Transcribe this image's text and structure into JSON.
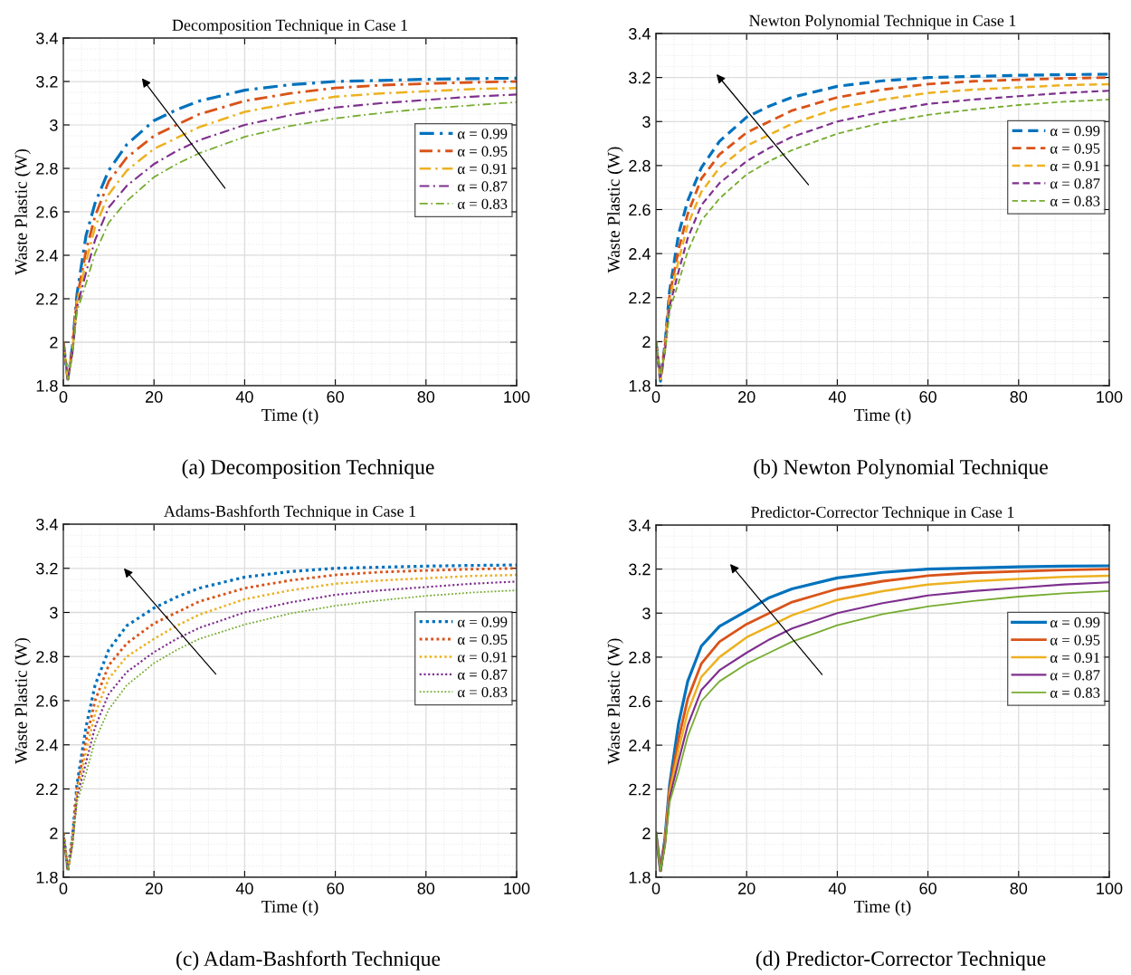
{
  "chart_data": [
    {
      "type": "line",
      "title": "Decomposition Technique in Case 1",
      "xlabel": "Time (t)",
      "ylabel": "Waste Plastic (W)",
      "annotations": [
        "(a) Decomposition Technique"
      ],
      "x": [
        0,
        1,
        2,
        3,
        5,
        7,
        10,
        14,
        20,
        25,
        30,
        40,
        50,
        60,
        70,
        80,
        90,
        100
      ],
      "xlim": [
        0,
        100
      ],
      "xticks": [
        0,
        20,
        40,
        60,
        80,
        100
      ],
      "ylim": [
        1.8,
        3.4
      ],
      "yticks": [
        1.8,
        2,
        2.2,
        2.4,
        2.6,
        2.8,
        3,
        3.2,
        3.4
      ],
      "grid": true,
      "legend": "right",
      "line_style": "dashdot",
      "series": [
        {
          "name": "α = 0.99",
          "color": "#0072bd",
          "values": [
            2.0,
            1.83,
            1.98,
            2.22,
            2.49,
            2.64,
            2.79,
            2.91,
            3.02,
            3.07,
            3.11,
            3.16,
            3.185,
            3.2,
            3.205,
            3.21,
            3.213,
            3.215
          ]
        },
        {
          "name": "α = 0.95",
          "color": "#d95319",
          "values": [
            2.0,
            1.83,
            1.97,
            2.2,
            2.42,
            2.58,
            2.74,
            2.85,
            2.95,
            3.0,
            3.05,
            3.11,
            3.145,
            3.17,
            3.183,
            3.19,
            3.196,
            3.2
          ]
        },
        {
          "name": "α = 0.91",
          "color": "#edb120",
          "values": [
            2.0,
            1.83,
            1.96,
            2.18,
            2.37,
            2.53,
            2.68,
            2.79,
            2.89,
            2.94,
            2.99,
            3.06,
            3.1,
            3.13,
            3.145,
            3.155,
            3.165,
            3.17
          ]
        },
        {
          "name": "α = 0.87",
          "color": "#7e2f8e",
          "values": [
            2.0,
            1.83,
            1.95,
            2.16,
            2.32,
            2.47,
            2.62,
            2.72,
            2.82,
            2.88,
            2.93,
            3.0,
            3.045,
            3.08,
            3.1,
            3.115,
            3.13,
            3.14
          ]
        },
        {
          "name": "α = 0.83",
          "color": "#77ac30",
          "values": [
            2.0,
            1.83,
            1.94,
            2.14,
            2.27,
            2.41,
            2.55,
            2.65,
            2.76,
            2.82,
            2.87,
            2.945,
            2.995,
            3.03,
            3.055,
            3.075,
            3.09,
            3.105
          ]
        }
      ]
    },
    {
      "type": "line",
      "title": "Newton Polynomial Technique in Case 1",
      "xlabel": "Time (t)",
      "ylabel": "Waste Plastic (W)",
      "annotations": [
        "(b) Newton Polynomial Technique"
      ],
      "x": [
        0,
        1,
        2,
        3,
        5,
        7,
        10,
        14,
        20,
        25,
        30,
        40,
        50,
        60,
        70,
        80,
        90,
        100
      ],
      "xlim": [
        0,
        100
      ],
      "xticks": [
        0,
        20,
        40,
        60,
        80,
        100
      ],
      "ylim": [
        1.8,
        3.4
      ],
      "yticks": [
        1.8,
        2,
        2.2,
        2.4,
        2.6,
        2.8,
        3,
        3.2,
        3.4
      ],
      "grid": true,
      "legend": "right",
      "line_style": "dashed",
      "series": [
        {
          "name": "α = 0.99",
          "color": "#0072bd",
          "values": [
            2.0,
            1.82,
            1.99,
            2.23,
            2.49,
            2.64,
            2.79,
            2.91,
            3.02,
            3.07,
            3.11,
            3.16,
            3.185,
            3.2,
            3.205,
            3.21,
            3.213,
            3.215
          ]
        },
        {
          "name": "α = 0.95",
          "color": "#d95319",
          "values": [
            2.0,
            1.83,
            1.98,
            2.21,
            2.42,
            2.58,
            2.74,
            2.85,
            2.95,
            3.0,
            3.05,
            3.11,
            3.145,
            3.17,
            3.183,
            3.19,
            3.196,
            3.2
          ]
        },
        {
          "name": "α = 0.91",
          "color": "#edb120",
          "values": [
            2.0,
            1.83,
            1.97,
            2.19,
            2.37,
            2.53,
            2.68,
            2.79,
            2.89,
            2.94,
            2.99,
            3.06,
            3.1,
            3.13,
            3.145,
            3.155,
            3.165,
            3.17
          ]
        },
        {
          "name": "α = 0.87",
          "color": "#7e2f8e",
          "values": [
            2.0,
            1.84,
            1.96,
            2.16,
            2.32,
            2.47,
            2.62,
            2.72,
            2.82,
            2.88,
            2.93,
            3.0,
            3.045,
            3.08,
            3.1,
            3.115,
            3.13,
            3.14
          ]
        },
        {
          "name": "α = 0.83",
          "color": "#77ac30",
          "values": [
            2.0,
            1.85,
            1.95,
            2.14,
            2.27,
            2.41,
            2.55,
            2.65,
            2.76,
            2.82,
            2.87,
            2.945,
            2.995,
            3.03,
            3.055,
            3.075,
            3.09,
            3.1
          ]
        }
      ]
    },
    {
      "type": "line",
      "title": "Adams-Bashforth Technique in Case 1",
      "xlabel": "Time (t)",
      "ylabel": "Waste Plastic (W)",
      "annotations": [
        "(c) Adam-Bashforth Technique"
      ],
      "x": [
        0,
        1,
        2,
        3,
        5,
        7,
        10,
        14,
        20,
        25,
        30,
        40,
        50,
        60,
        70,
        80,
        90,
        100
      ],
      "xlim": [
        0,
        100
      ],
      "xticks": [
        0,
        20,
        40,
        60,
        80,
        100
      ],
      "ylim": [
        1.8,
        3.4
      ],
      "yticks": [
        1.8,
        2,
        2.2,
        2.4,
        2.6,
        2.8,
        3,
        3.2,
        3.4
      ],
      "grid": true,
      "legend": "right",
      "line_style": "dotted",
      "series": [
        {
          "name": "α = 0.99",
          "color": "#0072bd",
          "values": [
            2.0,
            1.83,
            1.98,
            2.22,
            2.48,
            2.67,
            2.83,
            2.94,
            3.02,
            3.07,
            3.11,
            3.16,
            3.185,
            3.2,
            3.205,
            3.21,
            3.213,
            3.215
          ]
        },
        {
          "name": "α = 0.95",
          "color": "#d95319",
          "values": [
            2.0,
            1.83,
            1.97,
            2.2,
            2.42,
            2.6,
            2.76,
            2.86,
            2.95,
            3.0,
            3.05,
            3.11,
            3.145,
            3.17,
            3.183,
            3.19,
            3.196,
            3.2
          ]
        },
        {
          "name": "α = 0.91",
          "color": "#edb120",
          "values": [
            2.0,
            1.83,
            1.96,
            2.18,
            2.37,
            2.54,
            2.7,
            2.8,
            2.88,
            2.94,
            2.99,
            3.06,
            3.1,
            3.13,
            3.145,
            3.155,
            3.165,
            3.17
          ]
        },
        {
          "name": "α = 0.87",
          "color": "#7e2f8e",
          "values": [
            2.0,
            1.83,
            1.95,
            2.16,
            2.32,
            2.48,
            2.63,
            2.73,
            2.82,
            2.88,
            2.93,
            3.0,
            3.045,
            3.08,
            3.1,
            3.115,
            3.13,
            3.14
          ]
        },
        {
          "name": "α = 0.83",
          "color": "#77ac30",
          "values": [
            2.0,
            1.83,
            1.94,
            2.14,
            2.27,
            2.42,
            2.56,
            2.67,
            2.77,
            2.83,
            2.88,
            2.945,
            2.995,
            3.03,
            3.055,
            3.075,
            3.09,
            3.1
          ]
        }
      ]
    },
    {
      "type": "line",
      "title": "Predictor-Corrector Technique in Case 1",
      "xlabel": "Time (t)",
      "ylabel": "Waste Plastic (W)",
      "annotations": [
        "(d) Predictor-Corrector Technique"
      ],
      "x": [
        0,
        1,
        2,
        3,
        5,
        7,
        10,
        14,
        20,
        25,
        30,
        40,
        50,
        60,
        70,
        80,
        90,
        100
      ],
      "xlim": [
        0,
        100
      ],
      "xticks": [
        0,
        20,
        40,
        60,
        80,
        100
      ],
      "ylim": [
        1.8,
        3.4
      ],
      "yticks": [
        1.8,
        2,
        2.2,
        2.4,
        2.6,
        2.8,
        3,
        3.2,
        3.4
      ],
      "grid": true,
      "legend": "right",
      "line_style": "solid",
      "series": [
        {
          "name": "α = 0.99",
          "color": "#0072bd",
          "values": [
            2.0,
            1.83,
            1.98,
            2.22,
            2.5,
            2.69,
            2.85,
            2.94,
            3.01,
            3.07,
            3.11,
            3.16,
            3.185,
            3.2,
            3.205,
            3.21,
            3.213,
            3.215
          ]
        },
        {
          "name": "α = 0.95",
          "color": "#d95319",
          "values": [
            2.0,
            1.83,
            1.97,
            2.2,
            2.43,
            2.61,
            2.77,
            2.87,
            2.95,
            3.0,
            3.05,
            3.11,
            3.145,
            3.17,
            3.183,
            3.19,
            3.196,
            3.2
          ]
        },
        {
          "name": "α = 0.91",
          "color": "#edb120",
          "values": [
            null,
            null,
            1.96,
            2.18,
            2.38,
            2.55,
            2.71,
            2.8,
            2.89,
            2.94,
            2.99,
            3.06,
            3.1,
            3.13,
            3.145,
            3.155,
            3.165,
            3.17
          ]
        },
        {
          "name": "α = 0.87",
          "color": "#7e2f8e",
          "values": [
            2.0,
            1.83,
            1.95,
            2.16,
            2.33,
            2.49,
            2.65,
            2.74,
            2.82,
            2.88,
            2.93,
            3.0,
            3.045,
            3.08,
            3.1,
            3.115,
            3.13,
            3.14
          ]
        },
        {
          "name": "α = 0.83",
          "color": "#77ac30",
          "values": [
            2.0,
            1.83,
            1.94,
            2.14,
            2.28,
            2.44,
            2.6,
            2.69,
            2.77,
            2.82,
            2.87,
            2.945,
            2.995,
            3.03,
            3.055,
            3.075,
            3.09,
            3.1
          ]
        }
      ]
    }
  ]
}
